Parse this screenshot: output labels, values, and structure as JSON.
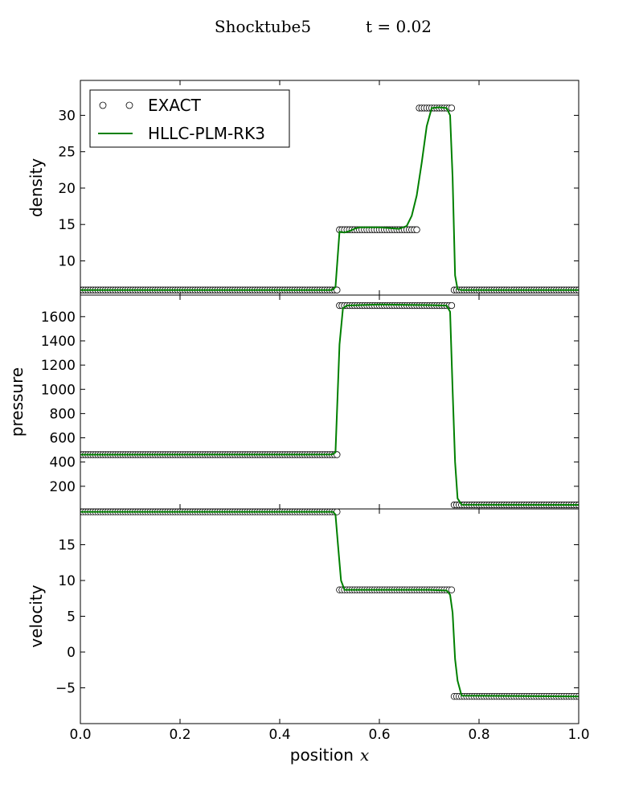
{
  "chart_data": {
    "type": "line",
    "title": "Shocktube5",
    "subtitle": "t = 0.02",
    "xlabel": "position",
    "xlabel_math": "x",
    "xlim": [
      0.0,
      1.0
    ],
    "xticks": [
      "0.0",
      "0.2",
      "0.4",
      "0.6",
      "0.8",
      "1.0"
    ],
    "legend": {
      "placement": "top-left of first panel",
      "entries": [
        "EXACT",
        "HLLC-PLM-RK3"
      ]
    },
    "series_styles": {
      "EXACT": {
        "marker": "open-circle",
        "color": "#000000"
      },
      "HLLC-PLM-RK3": {
        "line": "solid",
        "color": "#008000"
      }
    },
    "panels": [
      {
        "ylabel": "density",
        "ylim": [
          5.3,
          34.8
        ],
        "yticks": [
          "10",
          "15",
          "20",
          "25",
          "30"
        ],
        "exact": {
          "segments": [
            {
              "x": [
                0.0,
                0.515
              ],
              "y": 5.99
            },
            {
              "x": [
                0.52,
                0.675
              ],
              "y": 14.28
            },
            {
              "x": [
                0.68,
                0.745
              ],
              "y": 31.0
            },
            {
              "x": [
                0.75,
                1.0
              ],
              "y": 5.99
            }
          ]
        },
        "numeric": {
          "x": [
            0.0,
            0.505,
            0.512,
            0.52,
            0.53,
            0.54,
            0.55,
            0.56,
            0.6,
            0.64,
            0.655,
            0.665,
            0.675,
            0.685,
            0.695,
            0.705,
            0.72,
            0.735,
            0.742,
            0.747,
            0.752,
            0.757,
            0.765,
            1.0
          ],
          "y": [
            5.99,
            6.0,
            6.4,
            14.0,
            13.9,
            14.1,
            14.4,
            14.6,
            14.6,
            14.4,
            14.8,
            16.2,
            19.0,
            23.5,
            28.5,
            31.0,
            31.1,
            31.0,
            30.0,
            21.5,
            8.0,
            6.1,
            5.99,
            5.99
          ]
        }
      },
      {
        "ylabel": "pressure",
        "ylim": [
          13,
          1778
        ],
        "yticks": [
          "200",
          "400",
          "600",
          "800",
          "1000",
          "1200",
          "1400",
          "1600"
        ],
        "exact": {
          "segments": [
            {
              "x": [
                0.0,
                0.515
              ],
              "y": 460.9
            },
            {
              "x": [
                0.52,
                0.745
              ],
              "y": 1691.6
            },
            {
              "x": [
                0.75,
                1.0
              ],
              "y": 46.1
            }
          ]
        },
        "numeric": {
          "x": [
            0.0,
            0.505,
            0.512,
            0.52,
            0.527,
            0.535,
            0.6,
            0.7,
            0.735,
            0.742,
            0.747,
            0.752,
            0.757,
            0.765,
            1.0
          ],
          "y": [
            460.9,
            462,
            480,
            1370,
            1670,
            1692,
            1700,
            1695,
            1691,
            1640,
            1000,
            400,
            100,
            48,
            46.1
          ]
        }
      },
      {
        "ylabel": "velocity",
        "ylim": [
          -10,
          20
        ],
        "yticks": [
          "−5",
          "0",
          "5",
          "10",
          "15"
        ],
        "exact": {
          "segments": [
            {
              "x": [
                0.0,
                0.515
              ],
              "y": 19.6
            },
            {
              "x": [
                0.52,
                0.745
              ],
              "y": 8.69
            },
            {
              "x": [
                0.75,
                1.0
              ],
              "y": -6.2
            }
          ]
        },
        "numeric": {
          "x": [
            0.0,
            0.507,
            0.512,
            0.517,
            0.523,
            0.53,
            0.6,
            0.7,
            0.735,
            0.742,
            0.747,
            0.752,
            0.757,
            0.765,
            1.0
          ],
          "y": [
            19.6,
            19.6,
            19.2,
            15.0,
            10.0,
            8.7,
            8.7,
            8.7,
            8.6,
            8.0,
            5.5,
            -1.0,
            -4.0,
            -6.1,
            -6.2
          ]
        }
      }
    ]
  }
}
